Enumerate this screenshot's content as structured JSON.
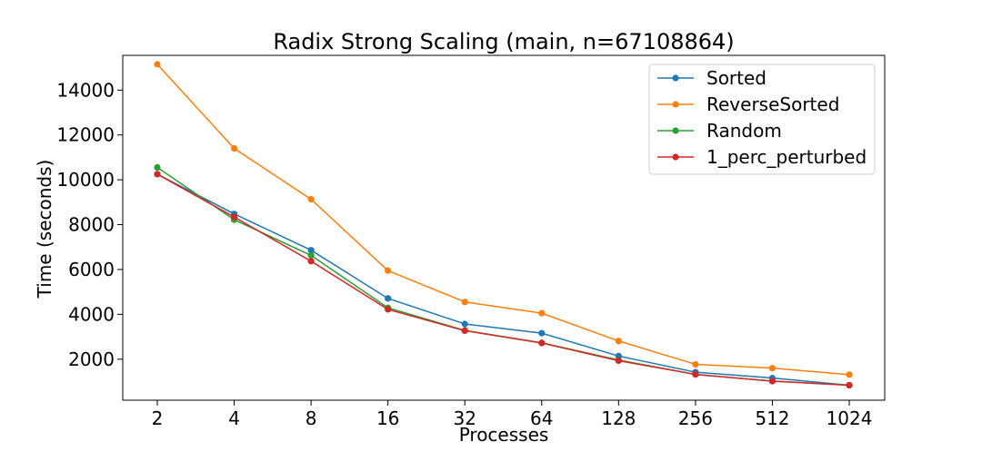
{
  "chart_data": {
    "type": "line",
    "title": "Radix Strong Scaling (main, n=67108864)",
    "xlabel": "Processes",
    "ylabel": "Time (seconds)",
    "x": [
      "2",
      "4",
      "8",
      "16",
      "32",
      "64",
      "128",
      "256",
      "512",
      "1024"
    ],
    "y_ticks": [
      2000,
      4000,
      6000,
      8000,
      10000,
      12000,
      14000
    ],
    "ylim": [
      170,
      15550
    ],
    "grid": false,
    "legend_position": "top-right",
    "series": [
      {
        "name": "Sorted",
        "color": "#1f77b4",
        "values": [
          10250,
          8480,
          6860,
          4710,
          3570,
          3160,
          2140,
          1420,
          1160,
          840
        ]
      },
      {
        "name": "ReverseSorted",
        "color": "#ff7f0e",
        "values": [
          15150,
          11400,
          9130,
          5950,
          4550,
          4050,
          2810,
          1770,
          1600,
          1310
        ]
      },
      {
        "name": "Random",
        "color": "#2ca02c",
        "values": [
          10550,
          8220,
          6630,
          4290,
          3280,
          2730,
          1960,
          1320,
          1020,
          840
        ]
      },
      {
        "name": "1_perc_perturbed",
        "color": "#d62728",
        "values": [
          10250,
          8340,
          6370,
          4220,
          3270,
          2720,
          1930,
          1320,
          1020,
          840
        ]
      }
    ]
  }
}
